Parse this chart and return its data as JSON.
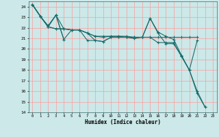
{
  "xlabel": "Humidex (Indice chaleur)",
  "ylabel": "",
  "xlim": [
    -0.5,
    23.5
  ],
  "ylim": [
    14,
    24.5
  ],
  "yticks": [
    14,
    15,
    16,
    17,
    18,
    19,
    20,
    21,
    22,
    23,
    24
  ],
  "xticks": [
    0,
    1,
    2,
    3,
    4,
    5,
    6,
    7,
    8,
    9,
    10,
    11,
    12,
    13,
    14,
    15,
    16,
    17,
    18,
    19,
    20,
    21,
    22,
    23
  ],
  "background_color": "#cce8e8",
  "grid_color": "#ff9999",
  "line_color": "#1a6b6b",
  "lines": [
    [
      24.2,
      23.1,
      22.1,
      23.2,
      20.9,
      null,
      null,
      null,
      null,
      null,
      null,
      null,
      null,
      null,
      null,
      null,
      null,
      null,
      null,
      null,
      null,
      null,
      null,
      null
    ],
    [
      24.2,
      23.1,
      22.1,
      23.2,
      20.9,
      21.8,
      21.8,
      21.5,
      20.8,
      20.7,
      21.1,
      21.1,
      21.1,
      21.1,
      21.1,
      22.9,
      21.5,
      20.5,
      20.5,
      19.3,
      18.0,
      15.8,
      14.5,
      null
    ],
    [
      24.2,
      23.1,
      22.1,
      21.9,
      21.9,
      21.8,
      21.8,
      21.5,
      21.2,
      21.1,
      21.2,
      21.2,
      21.1,
      21.1,
      21.1,
      21.1,
      21.1,
      21.1,
      21.1,
      21.1,
      21.1,
      21.1,
      null,
      null
    ],
    [
      24.2,
      23.1,
      22.1,
      21.9,
      21.9,
      21.8,
      21.8,
      21.5,
      21.2,
      21.2,
      21.2,
      21.2,
      21.2,
      21.1,
      21.1,
      21.1,
      20.6,
      20.6,
      20.6,
      19.3,
      18.0,
      20.8,
      null,
      null
    ],
    [
      24.2,
      23.1,
      22.2,
      23.2,
      21.9,
      21.8,
      21.8,
      20.8,
      20.8,
      20.7,
      21.1,
      21.1,
      21.1,
      21.0,
      21.1,
      22.9,
      21.6,
      21.2,
      20.9,
      19.4,
      18.0,
      16.0,
      14.5,
      null
    ]
  ]
}
